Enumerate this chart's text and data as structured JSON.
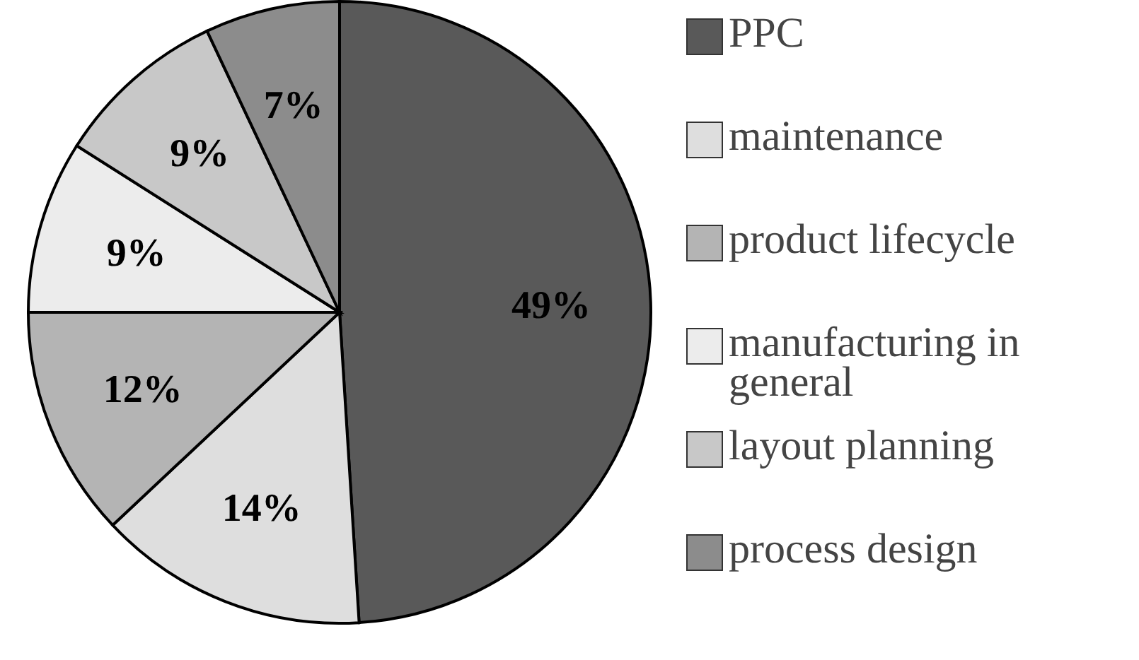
{
  "chart_data": {
    "type": "pie",
    "categories": [
      "PPC",
      "maintenance",
      "product lifecycle",
      "manufacturing in general",
      "layout planning",
      "process design"
    ],
    "values": [
      49,
      14,
      12,
      9,
      9,
      7
    ],
    "colors": [
      "#595959",
      "#dedede",
      "#b4b4b4",
      "#ececec",
      "#c8c8c8",
      "#8c8c8c"
    ],
    "data_labels": true,
    "value_labels": [
      "49%",
      "14%",
      "12%",
      "9%",
      "9%",
      "7%"
    ],
    "legend": "right"
  }
}
